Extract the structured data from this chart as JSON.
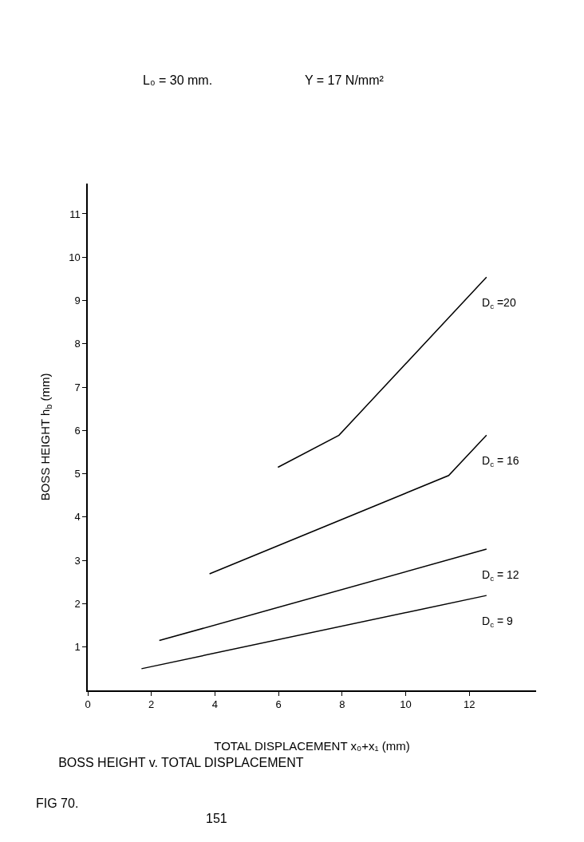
{
  "chart_data": {
    "type": "line",
    "title": "BOSS HEIGHT v. TOTAL DISPLACEMENT",
    "xlabel": "TOTAL DISPLACEMENT x₀+x₁ (mm)",
    "ylabel": "BOSS HEIGHT h$_{b}$ (mm)",
    "annotations": [
      "L₀ = 30 mm.",
      "Y = 17 N/mm²",
      "FIG 70.",
      "151"
    ],
    "series": [
      {
        "name": "D$_{c}$ =20",
        "color": "#000000",
        "x": [
          5.98,
          7.9,
          12.54
        ],
        "values": [
          5.15,
          5.89,
          9.54
        ]
      },
      {
        "name": "D$_{c}$ = 16",
        "color": "#000000",
        "x": [
          3.83,
          11.35,
          12.54
        ],
        "values": [
          2.69,
          4.96,
          5.89
        ]
      },
      {
        "name": "D$_{c}$ = 12",
        "color": "#000000",
        "x": [
          2.25,
          12.54
        ],
        "values": [
          1.15,
          3.26
        ]
      },
      {
        "name": "D$_{c}$ = 9",
        "color": "#000000",
        "x": [
          1.69,
          12.54
        ],
        "values": [
          0.5,
          2.19
        ]
      }
    ],
    "xlim": [
      0,
      14.1
    ],
    "ylim": [
      0,
      11.7
    ],
    "xticks": [
      0,
      2,
      4,
      6,
      8,
      10,
      12
    ],
    "yticks": [
      1,
      2,
      3,
      4,
      5,
      6,
      7,
      8,
      9,
      10,
      11
    ],
    "legend": false,
    "marker": "none",
    "line_style": "solid"
  }
}
